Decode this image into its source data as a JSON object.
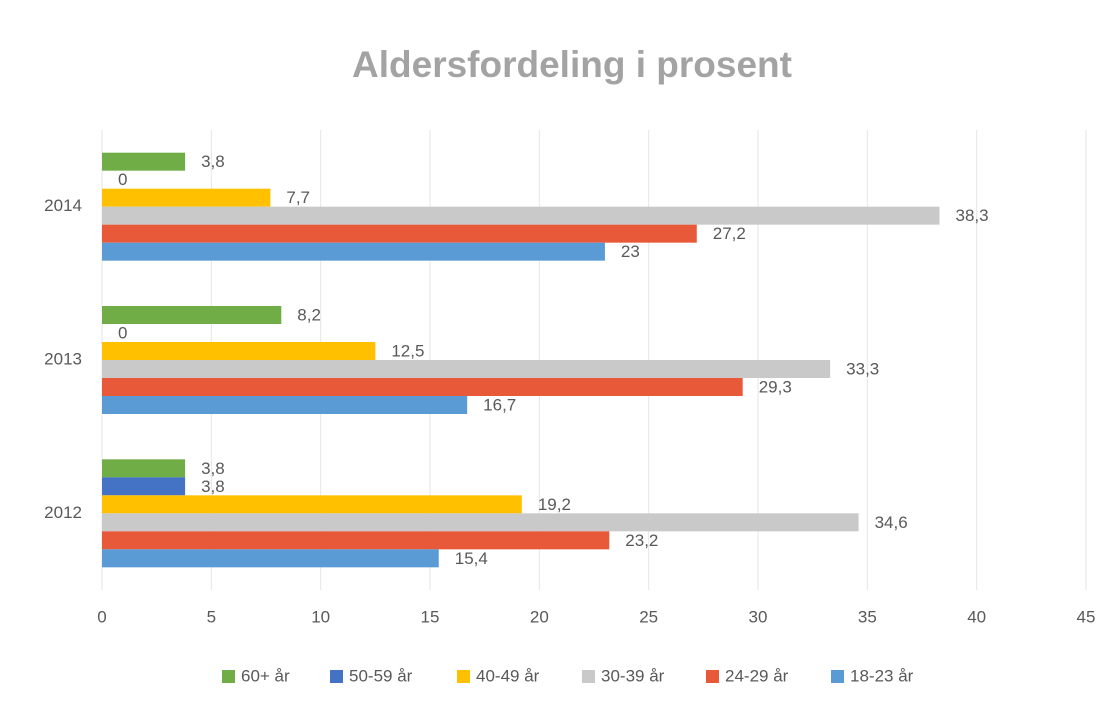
{
  "chart_data": {
    "type": "hbar",
    "title": "Aldersfordeling i prosent",
    "categories": [
      "2014",
      "2013",
      "2012"
    ],
    "series": [
      {
        "name": "60+ år",
        "color": "#70ad47",
        "values": [
          3.8,
          8.2,
          3.8
        ],
        "value_labels": [
          "3,8",
          "8,2",
          "3,8"
        ]
      },
      {
        "name": "50-59 år",
        "color": "#4472c4",
        "values": [
          0,
          0,
          3.8
        ],
        "value_labels": [
          "0",
          "0",
          "3,8"
        ]
      },
      {
        "name": "40-49 år",
        "color": "#ffc000",
        "values": [
          7.7,
          12.5,
          19.2
        ],
        "value_labels": [
          "7,7",
          "12,5",
          "19,2"
        ]
      },
      {
        "name": "30-39 år",
        "color": "#c9c9c9",
        "values": [
          38.3,
          33.3,
          34.6
        ],
        "value_labels": [
          "38,3",
          "33,3",
          "34,6"
        ]
      },
      {
        "name": "24-29 år",
        "color": "#e8593a",
        "values": [
          27.2,
          29.3,
          23.2
        ],
        "value_labels": [
          "27,2",
          "29,3",
          "23,2"
        ]
      },
      {
        "name": "18-23 år",
        "color": "#5b9bd5",
        "values": [
          23,
          16.7,
          15.4
        ],
        "value_labels": [
          "23",
          "16,7",
          "15,4"
        ]
      }
    ],
    "xlim": [
      0,
      45
    ],
    "xticks": [
      0,
      5,
      10,
      15,
      20,
      25,
      30,
      35,
      40,
      45
    ],
    "grid": true,
    "legend": "bottom"
  }
}
